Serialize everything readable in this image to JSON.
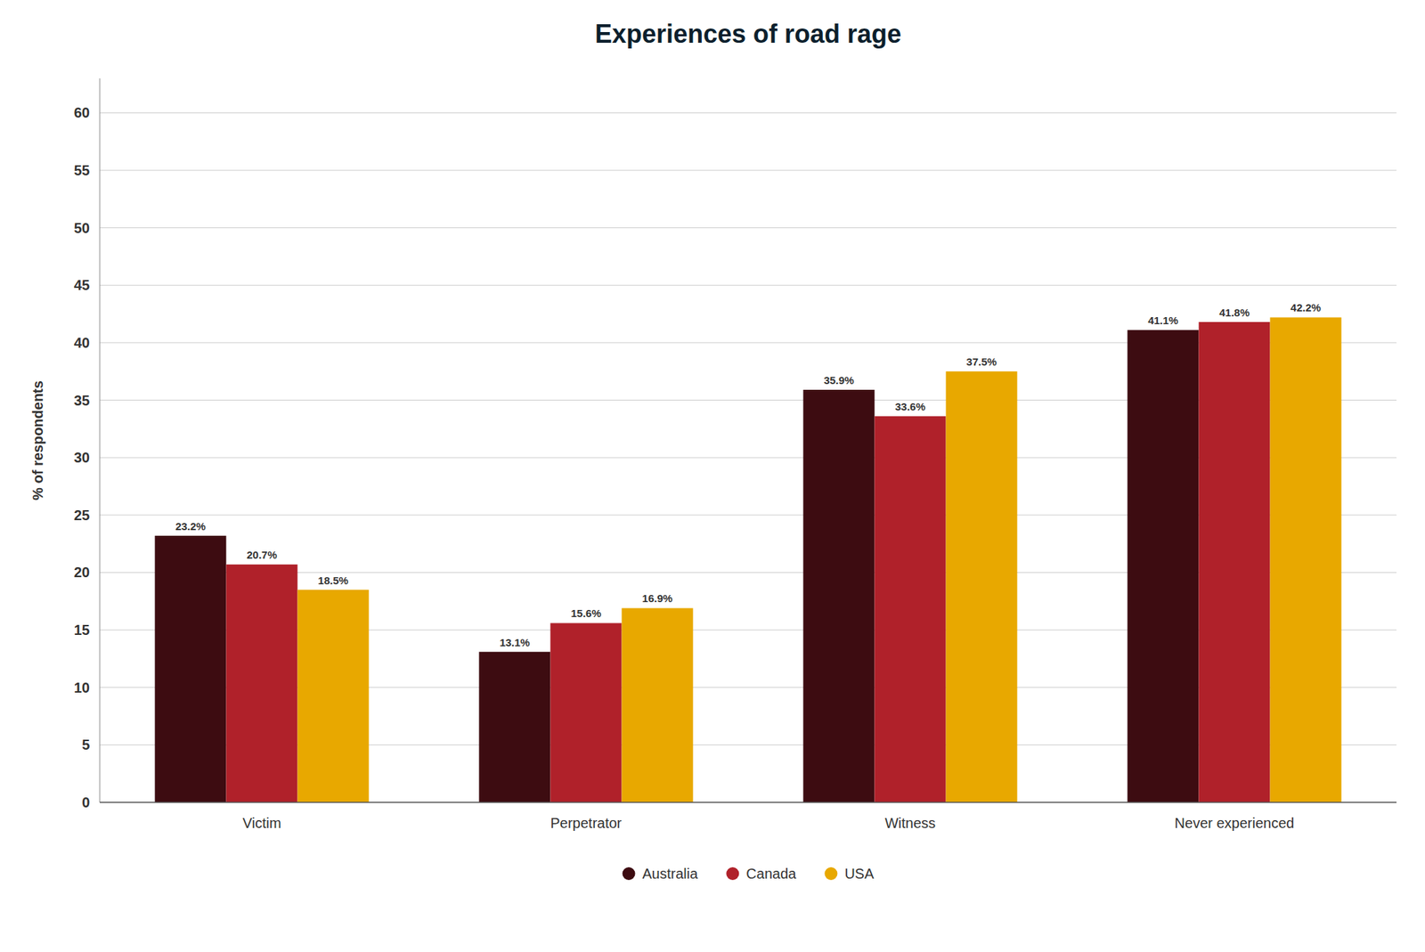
{
  "chart_data": {
    "type": "bar",
    "title": "Experiences of road rage",
    "categories": [
      "Victim",
      "Perpetrator",
      "Witness",
      "Never experienced"
    ],
    "series": [
      {
        "name": "Australia",
        "color": "#3d0c11",
        "values": [
          23.2,
          13.1,
          35.9,
          41.1
        ],
        "value_labels": [
          "23.2%",
          "13.1%",
          "35.9%",
          "41.1%"
        ]
      },
      {
        "name": "Canada",
        "color": "#b0212a",
        "values": [
          20.7,
          15.6,
          33.6,
          41.8
        ],
        "value_labels": [
          "20.7%",
          "15.6%",
          "33.6%",
          "41.8%"
        ]
      },
      {
        "name": "USA",
        "color": "#e8a800",
        "values": [
          18.5,
          16.9,
          37.5,
          42.2
        ],
        "value_labels": [
          "18.5%",
          "16.9%",
          "37.5%",
          "42.2%"
        ]
      }
    ],
    "ylabel": "% of respondents",
    "ylim": [
      0,
      63
    ],
    "yticks": [
      0,
      5,
      10,
      15,
      20,
      25,
      30,
      35,
      40,
      45,
      50,
      55,
      60
    ],
    "grid": true,
    "legend": "bottom",
    "data_labels": true
  }
}
